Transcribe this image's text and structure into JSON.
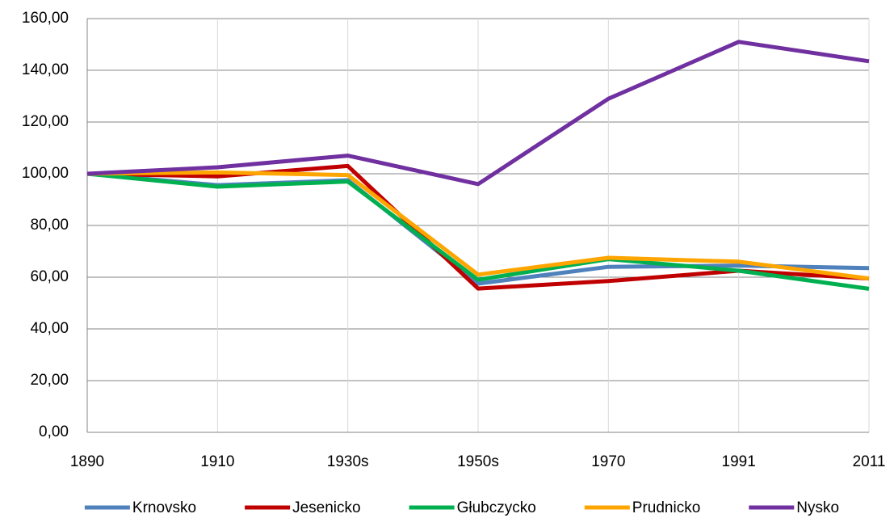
{
  "chart_data": {
    "type": "line",
    "categories": [
      "1890",
      "1910",
      "1930s",
      "1950s",
      "1970",
      "1991",
      "2011"
    ],
    "series": [
      {
        "name": "Krnovsko",
        "color": "#4f81bd",
        "values": [
          100,
          95.6,
          97.5,
          57.5,
          64,
          64.5,
          63.5
        ]
      },
      {
        "name": "Jesenicko",
        "color": "#c00000",
        "values": [
          100,
          99,
          103,
          55.6,
          58.5,
          62.5,
          59.5
        ]
      },
      {
        "name": "Głubczycko",
        "color": "#00b050",
        "values": [
          100,
          95,
          97,
          59,
          67,
          62.5,
          55.5
        ]
      },
      {
        "name": "Prudnicko",
        "color": "#ffa500",
        "values": [
          100,
          100.5,
          99.5,
          61,
          67.5,
          66,
          59.5
        ]
      },
      {
        "name": "Nysko",
        "color": "#7030a0",
        "values": [
          100,
          102.5,
          107,
          96,
          129,
          151,
          143.5
        ]
      }
    ],
    "ylim": [
      0,
      160
    ],
    "yticks": [
      {
        "value": 0,
        "label": "0,00"
      },
      {
        "value": 20,
        "label": "20,00"
      },
      {
        "value": 40,
        "label": "40,00"
      },
      {
        "value": 60,
        "label": "60,00"
      },
      {
        "value": 80,
        "label": "80,00"
      },
      {
        "value": 100,
        "label": "100,00"
      },
      {
        "value": 120,
        "label": "120,00"
      },
      {
        "value": 140,
        "label": "140,00"
      },
      {
        "value": 160,
        "label": "160,00"
      }
    ],
    "grid": true,
    "legend": "bottom"
  }
}
